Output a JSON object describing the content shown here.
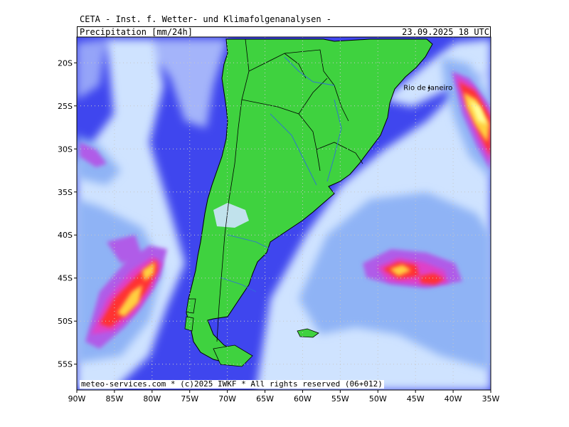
{
  "header": {
    "title": "CETA - Inst. f. Wetter- und Klimafolgenanalysen -",
    "subtitle": "Precipitation [mm/24h]",
    "timestamp": "23.09.2025 18 UTC"
  },
  "footer": "meteo-services.com * (c)2025 IWKF * All rights reserved (06+012)",
  "map": {
    "lon_range": [
      -90,
      -35
    ],
    "lat_range": [
      -58,
      -17
    ],
    "lon_ticks": [
      {
        "value": -90,
        "label": "90W"
      },
      {
        "value": -85,
        "label": "85W"
      },
      {
        "value": -80,
        "label": "80W"
      },
      {
        "value": -75,
        "label": "75W"
      },
      {
        "value": -70,
        "label": "70W"
      },
      {
        "value": -65,
        "label": "65W"
      },
      {
        "value": -60,
        "label": "60W"
      },
      {
        "value": -55,
        "label": "55W"
      },
      {
        "value": -50,
        "label": "50W"
      },
      {
        "value": -45,
        "label": "45W"
      },
      {
        "value": -40,
        "label": "40W"
      },
      {
        "value": -35,
        "label": "35W"
      }
    ],
    "lat_ticks": [
      {
        "value": -20,
        "label": "20S"
      },
      {
        "value": -25,
        "label": "25S"
      },
      {
        "value": -30,
        "label": "30S"
      },
      {
        "value": -35,
        "label": "35S"
      },
      {
        "value": -40,
        "label": "40S"
      },
      {
        "value": -45,
        "label": "45S"
      },
      {
        "value": -50,
        "label": "50S"
      },
      {
        "value": -55,
        "label": "55S"
      }
    ],
    "city": {
      "name": "Rio de Janeiro",
      "lon": -43.2,
      "lat": -22.9
    },
    "colors": {
      "ocean_dry": "#3f46ee",
      "land": "#3fd23f",
      "light_precip": "#cfe3ff",
      "mid_precip": "#8fb3f5",
      "heavy_precip": "#b05ce8",
      "very_heavy": "#e040c8",
      "extreme": "#ff3030",
      "peak": "#ffd040",
      "max": "#ffff99",
      "rivers": "#2f6fd8",
      "borders": "#000000"
    }
  }
}
